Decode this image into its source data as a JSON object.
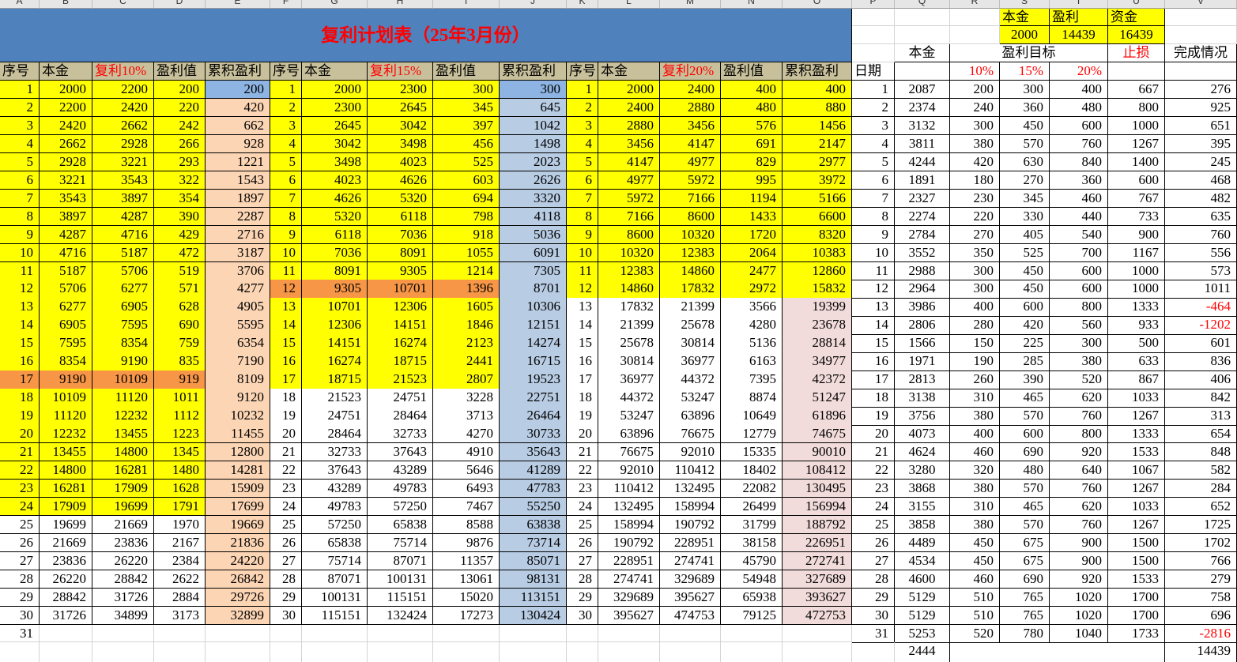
{
  "columns": [
    "A",
    "B",
    "C",
    "D",
    "E",
    "F",
    "G",
    "H",
    "I",
    "J",
    "K",
    "L",
    "M",
    "N",
    "O",
    "P",
    "Q",
    "R",
    "S",
    "T",
    "U",
    "V"
  ],
  "title": "复利计划表（25年3月份）",
  "summary": {
    "labels": [
      "本金",
      "盈利",
      "资金"
    ],
    "values": [
      2000,
      14439,
      16439
    ]
  },
  "headers": {
    "left": [
      "序号",
      "本金",
      "复利10%",
      "盈利值",
      "累积盈利",
      "序号",
      "本金",
      "复利15%",
      "盈利值",
      "累积盈利",
      "序号",
      "本金",
      "复利20%",
      "盈利值",
      "累积盈利"
    ],
    "right": {
      "date": "日期",
      "principal": "本金",
      "target": "盈利目标",
      "stop_loss": "止损",
      "completion": "完成情况",
      "rates": [
        "10%",
        "15%",
        "20%"
      ]
    }
  },
  "plan_10": [
    [
      1,
      2000,
      2200,
      200,
      200
    ],
    [
      2,
      2200,
      2420,
      220,
      420
    ],
    [
      3,
      2420,
      2662,
      242,
      662
    ],
    [
      4,
      2662,
      2928,
      266,
      928
    ],
    [
      5,
      2928,
      3221,
      293,
      1221
    ],
    [
      6,
      3221,
      3543,
      322,
      1543
    ],
    [
      7,
      3543,
      3897,
      354,
      1897
    ],
    [
      8,
      3897,
      4287,
      390,
      2287
    ],
    [
      9,
      4287,
      4716,
      429,
      2716
    ],
    [
      10,
      4716,
      5187,
      472,
      3187
    ],
    [
      11,
      5187,
      5706,
      519,
      3706
    ],
    [
      12,
      5706,
      6277,
      571,
      4277
    ],
    [
      13,
      6277,
      6905,
      628,
      4905
    ],
    [
      14,
      6905,
      7595,
      690,
      5595
    ],
    [
      15,
      7595,
      8354,
      759,
      6354
    ],
    [
      16,
      8354,
      9190,
      835,
      7190
    ],
    [
      17,
      9190,
      10109,
      919,
      8109
    ],
    [
      18,
      10109,
      11120,
      1011,
      9120
    ],
    [
      19,
      11120,
      12232,
      1112,
      10232
    ],
    [
      20,
      12232,
      13455,
      1223,
      11455
    ],
    [
      21,
      13455,
      14800,
      1345,
      12800
    ],
    [
      22,
      14800,
      16281,
      1480,
      14281
    ],
    [
      23,
      16281,
      17909,
      1628,
      15909
    ],
    [
      24,
      17909,
      19699,
      1791,
      17699
    ],
    [
      25,
      19699,
      21669,
      1970,
      19669
    ],
    [
      26,
      21669,
      23836,
      2167,
      21836
    ],
    [
      27,
      23836,
      26220,
      2384,
      24220
    ],
    [
      28,
      26220,
      28842,
      2622,
      26842
    ],
    [
      29,
      28842,
      31726,
      2884,
      29726
    ],
    [
      30,
      31726,
      34899,
      3173,
      32899
    ]
  ],
  "plan_15": [
    [
      1,
      2000,
      2300,
      300,
      300
    ],
    [
      2,
      2300,
      2645,
      345,
      645
    ],
    [
      3,
      2645,
      3042,
      397,
      1042
    ],
    [
      4,
      3042,
      3498,
      456,
      1498
    ],
    [
      5,
      3498,
      4023,
      525,
      2023
    ],
    [
      6,
      4023,
      4626,
      603,
      2626
    ],
    [
      7,
      4626,
      5320,
      694,
      3320
    ],
    [
      8,
      5320,
      6118,
      798,
      4118
    ],
    [
      9,
      6118,
      7036,
      918,
      5036
    ],
    [
      10,
      7036,
      8091,
      1055,
      6091
    ],
    [
      11,
      8091,
      9305,
      1214,
      7305
    ],
    [
      12,
      9305,
      10701,
      1396,
      8701
    ],
    [
      13,
      10701,
      12306,
      1605,
      10306
    ],
    [
      14,
      12306,
      14151,
      1846,
      12151
    ],
    [
      15,
      14151,
      16274,
      2123,
      14274
    ],
    [
      16,
      16274,
      18715,
      2441,
      16715
    ],
    [
      17,
      18715,
      21523,
      2807,
      19523
    ],
    [
      18,
      21523,
      24751,
      3228,
      22751
    ],
    [
      19,
      24751,
      28464,
      3713,
      26464
    ],
    [
      20,
      28464,
      32733,
      4270,
      30733
    ],
    [
      21,
      32733,
      37643,
      4910,
      35643
    ],
    [
      22,
      37643,
      43289,
      5646,
      41289
    ],
    [
      23,
      43289,
      49783,
      6493,
      47783
    ],
    [
      24,
      49783,
      57250,
      7467,
      55250
    ],
    [
      25,
      57250,
      65838,
      8588,
      63838
    ],
    [
      26,
      65838,
      75714,
      9876,
      73714
    ],
    [
      27,
      75714,
      87071,
      11357,
      85071
    ],
    [
      28,
      87071,
      100131,
      13061,
      98131
    ],
    [
      29,
      100131,
      115151,
      15020,
      113151
    ],
    [
      30,
      115151,
      132424,
      17273,
      130424
    ]
  ],
  "plan_20": [
    [
      1,
      2000,
      2400,
      400,
      400
    ],
    [
      2,
      2400,
      2880,
      480,
      880
    ],
    [
      3,
      2880,
      3456,
      576,
      1456
    ],
    [
      4,
      3456,
      4147,
      691,
      2147
    ],
    [
      5,
      4147,
      4977,
      829,
      2977
    ],
    [
      6,
      4977,
      5972,
      995,
      3972
    ],
    [
      7,
      5972,
      7166,
      1194,
      5166
    ],
    [
      8,
      7166,
      8600,
      1433,
      6600
    ],
    [
      9,
      8600,
      10320,
      1720,
      8320
    ],
    [
      10,
      10320,
      12383,
      2064,
      10383
    ],
    [
      11,
      12383,
      14860,
      2477,
      12860
    ],
    [
      12,
      14860,
      17832,
      2972,
      15832
    ],
    [
      13,
      17832,
      21399,
      3566,
      19399
    ],
    [
      14,
      21399,
      25678,
      4280,
      23678
    ],
    [
      15,
      25678,
      30814,
      5136,
      28814
    ],
    [
      16,
      30814,
      36977,
      6163,
      34977
    ],
    [
      17,
      36977,
      44372,
      7395,
      42372
    ],
    [
      18,
      44372,
      53247,
      8874,
      51247
    ],
    [
      19,
      53247,
      63896,
      10649,
      61896
    ],
    [
      20,
      63896,
      76675,
      12779,
      74675
    ],
    [
      21,
      76675,
      92010,
      15335,
      90010
    ],
    [
      22,
      92010,
      110412,
      18402,
      108412
    ],
    [
      23,
      110412,
      132495,
      22082,
      130495
    ],
    [
      24,
      132495,
      158994,
      26499,
      156994
    ],
    [
      25,
      158994,
      190792,
      31799,
      188792
    ],
    [
      26,
      190792,
      228951,
      38158,
      226951
    ],
    [
      27,
      228951,
      274741,
      45790,
      272741
    ],
    [
      28,
      274741,
      329689,
      54948,
      327689
    ],
    [
      29,
      329689,
      395627,
      65938,
      393627
    ],
    [
      30,
      395627,
      474753,
      79125,
      472753
    ]
  ],
  "plan_extra_seq": 31,
  "daily": [
    [
      1,
      2087,
      200,
      300,
      400,
      667,
      276
    ],
    [
      2,
      2374,
      240,
      360,
      480,
      800,
      925
    ],
    [
      3,
      3132,
      300,
      450,
      600,
      1000,
      651
    ],
    [
      4,
      3811,
      380,
      570,
      760,
      1267,
      395
    ],
    [
      5,
      4244,
      420,
      630,
      840,
      1400,
      245
    ],
    [
      6,
      1891,
      180,
      270,
      360,
      600,
      468
    ],
    [
      7,
      2327,
      230,
      345,
      460,
      767,
      482
    ],
    [
      8,
      2274,
      220,
      330,
      440,
      733,
      635
    ],
    [
      9,
      2784,
      270,
      405,
      540,
      900,
      760
    ],
    [
      10,
      3552,
      350,
      525,
      700,
      1167,
      556
    ],
    [
      11,
      2988,
      300,
      450,
      600,
      1000,
      573
    ],
    [
      12,
      2964,
      300,
      450,
      600,
      1000,
      1011
    ],
    [
      13,
      3986,
      400,
      600,
      800,
      1333,
      -464
    ],
    [
      14,
      2806,
      280,
      420,
      560,
      933,
      -1202
    ],
    [
      15,
      1566,
      150,
      225,
      300,
      500,
      601
    ],
    [
      16,
      1971,
      190,
      285,
      380,
      633,
      836
    ],
    [
      17,
      2813,
      260,
      390,
      520,
      867,
      406
    ],
    [
      18,
      3138,
      310,
      465,
      620,
      1033,
      842
    ],
    [
      19,
      3756,
      380,
      570,
      760,
      1267,
      313
    ],
    [
      20,
      4073,
      400,
      600,
      800,
      1333,
      654
    ],
    [
      21,
      4624,
      460,
      690,
      920,
      1533,
      848
    ],
    [
      22,
      3280,
      320,
      480,
      640,
      1067,
      582
    ],
    [
      23,
      3868,
      380,
      570,
      760,
      1267,
      284
    ],
    [
      24,
      3155,
      310,
      465,
      620,
      1033,
      652
    ],
    [
      25,
      3858,
      380,
      570,
      760,
      1267,
      1725
    ],
    [
      26,
      4489,
      450,
      675,
      900,
      1500,
      1702
    ],
    [
      27,
      4534,
      450,
      675,
      900,
      1500,
      766
    ],
    [
      28,
      4600,
      460,
      690,
      920,
      1533,
      279
    ],
    [
      29,
      5129,
      510,
      765,
      1020,
      1700,
      758
    ],
    [
      30,
      5129,
      510,
      765,
      1020,
      1700,
      696
    ],
    [
      31,
      5253,
      520,
      780,
      1040,
      1733,
      -2816
    ]
  ],
  "totals": {
    "principal": 2444,
    "completion": 14439
  },
  "colors": {
    "title_bg": "#4f81bd",
    "title_text": "#ff0000",
    "header_bg": "#c8c09a",
    "highlight_yellow": "#ffff00",
    "highlight_orange": "#f79646",
    "cumulative_10": "#fcd5b4",
    "cumulative_15": "#b8cce4",
    "cumulative_first": "#8db4e2",
    "cumulative_20": "#f2dcdb",
    "negative": "#ff0000"
  }
}
